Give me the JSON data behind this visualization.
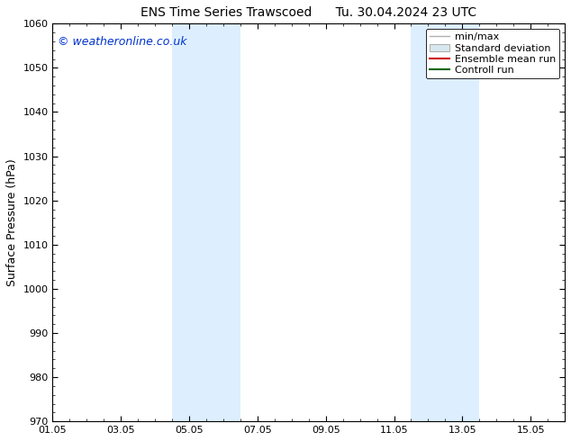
{
  "title": "ENS Time Series Trawscoed      Tu. 30.04.2024 23 UTC",
  "ylabel": "Surface Pressure (hPa)",
  "ylim": [
    970,
    1060
  ],
  "yticks": [
    970,
    980,
    990,
    1000,
    1010,
    1020,
    1030,
    1040,
    1050,
    1060
  ],
  "xlim_start": 0.0,
  "xlim_end": 15.0,
  "xtick_positions": [
    0,
    2,
    4,
    6,
    8,
    10,
    12,
    14
  ],
  "xtick_labels": [
    "01.05",
    "03.05",
    "05.05",
    "07.05",
    "09.05",
    "11.05",
    "13.05",
    "15.05"
  ],
  "shade_bands": [
    {
      "x_start": 3.5,
      "x_end": 5.5
    },
    {
      "x_start": 10.5,
      "x_end": 12.5
    }
  ],
  "shade_color": "#ddeeff",
  "background_color": "#ffffff",
  "copyright_text": "© weatheronline.co.uk",
  "copyright_color": "#0033cc",
  "legend_items": [
    {
      "label": "min/max",
      "type": "line",
      "color": "#b0b0b0",
      "lw": 1.0
    },
    {
      "label": "Standard deviation",
      "type": "patch",
      "facecolor": "#d8e8f0",
      "edgecolor": "#b0b0b0"
    },
    {
      "label": "Ensemble mean run",
      "type": "line",
      "color": "#cc0000",
      "lw": 1.5
    },
    {
      "label": "Controll run",
      "type": "line",
      "color": "#006600",
      "lw": 1.5
    }
  ],
  "title_fontsize": 10,
  "ylabel_fontsize": 9,
  "tick_fontsize": 8,
  "legend_fontsize": 8,
  "copyright_fontsize": 9
}
